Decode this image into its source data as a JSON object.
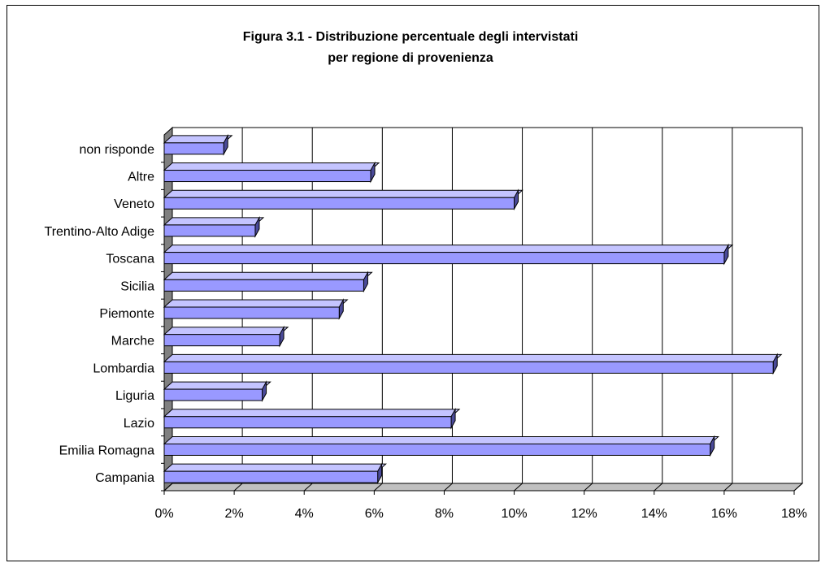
{
  "chart_data": {
    "type": "bar",
    "orientation": "horizontal",
    "style": "3d",
    "title_line1": "Figura 3.1 - Distribuzione percentuale degli intervistati",
    "title_line2": "per regione di provenienza",
    "categories": [
      "Campania",
      "Emilia Romagna",
      "Lazio",
      "Liguria",
      "Lombardia",
      "Marche",
      "Piemonte",
      "Sicilia",
      "Toscana",
      "Trentino-Alto Adige",
      "Veneto",
      "Altre",
      "non risponde"
    ],
    "values": [
      6.1,
      15.6,
      8.2,
      2.8,
      17.4,
      3.3,
      5.0,
      5.7,
      16.0,
      2.6,
      10.0,
      5.9,
      1.7
    ],
    "x_ticks": [
      "0%",
      "2%",
      "4%",
      "6%",
      "8%",
      "10%",
      "12%",
      "14%",
      "16%",
      "18%"
    ],
    "xlim": [
      0,
      18
    ],
    "grid": "vertical",
    "legend": "none",
    "bar_color": "#9999FF",
    "bar_top_color": "#C4C4FF",
    "bar_side_color": "#4A4A99",
    "wall_color": "#808080",
    "floor_color": "#C0C0C0"
  }
}
